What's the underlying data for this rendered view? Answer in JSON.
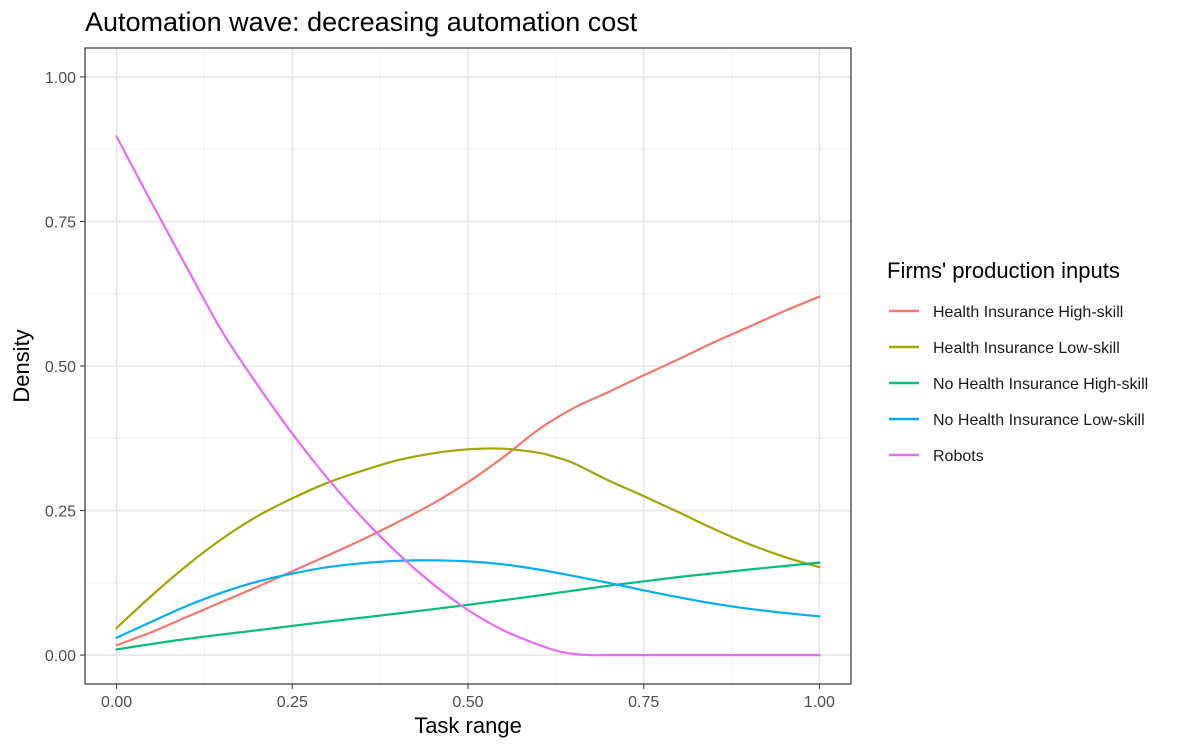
{
  "chart_data": {
    "type": "line",
    "title": "Automation wave: decreasing automation cost",
    "xlabel": "Task range",
    "ylabel": "Density",
    "xlim": [
      -0.045,
      1.045
    ],
    "ylim": [
      -0.05,
      1.05
    ],
    "x_ticks": [
      0,
      0.25,
      0.5,
      0.75,
      1
    ],
    "x_tick_labels": [
      "0.00",
      "0.25",
      "0.50",
      "0.75",
      "1.00"
    ],
    "y_ticks": [
      0,
      0.25,
      0.5,
      0.75,
      1
    ],
    "y_tick_labels": [
      "0.00",
      "0.25",
      "0.50",
      "0.75",
      "1.00"
    ],
    "grid": true,
    "legend": {
      "title": "Firms' production inputs",
      "placement": "right"
    },
    "series": [
      {
        "name": "Health Insurance High-skill",
        "color": "#F8766D",
        "points": [
          [
            0,
            0.017
          ],
          [
            0.05,
            0.04
          ],
          [
            0.1,
            0.066
          ],
          [
            0.15,
            0.092
          ],
          [
            0.2,
            0.118
          ],
          [
            0.25,
            0.145
          ],
          [
            0.3,
            0.172
          ],
          [
            0.35,
            0.2
          ],
          [
            0.4,
            0.23
          ],
          [
            0.45,
            0.262
          ],
          [
            0.5,
            0.299
          ],
          [
            0.55,
            0.342
          ],
          [
            0.6,
            0.39
          ],
          [
            0.65,
            0.427
          ],
          [
            0.7,
            0.455
          ],
          [
            0.75,
            0.484
          ],
          [
            0.8,
            0.512
          ],
          [
            0.85,
            0.541
          ],
          [
            0.9,
            0.568
          ],
          [
            0.95,
            0.595
          ],
          [
            1,
            0.62
          ]
        ]
      },
      {
        "name": "Health Insurance Low-skill",
        "color": "#A3A500",
        "points": [
          [
            0,
            0.047
          ],
          [
            0.05,
            0.103
          ],
          [
            0.1,
            0.155
          ],
          [
            0.15,
            0.201
          ],
          [
            0.2,
            0.24
          ],
          [
            0.25,
            0.271
          ],
          [
            0.3,
            0.298
          ],
          [
            0.35,
            0.319
          ],
          [
            0.4,
            0.337
          ],
          [
            0.45,
            0.349
          ],
          [
            0.5,
            0.356
          ],
          [
            0.55,
            0.357
          ],
          [
            0.6,
            0.35
          ],
          [
            0.62,
            0.344
          ],
          [
            0.65,
            0.332
          ],
          [
            0.7,
            0.302
          ],
          [
            0.75,
            0.275
          ],
          [
            0.8,
            0.247
          ],
          [
            0.85,
            0.218
          ],
          [
            0.9,
            0.192
          ],
          [
            0.95,
            0.17
          ],
          [
            1,
            0.152
          ]
        ]
      },
      {
        "name": "No Health Insurance High-skill",
        "color": "#00BF7D",
        "points": [
          [
            0,
            0.01
          ],
          [
            0.1,
            0.028
          ],
          [
            0.2,
            0.043
          ],
          [
            0.3,
            0.058
          ],
          [
            0.4,
            0.072
          ],
          [
            0.5,
            0.087
          ],
          [
            0.6,
            0.103
          ],
          [
            0.7,
            0.12
          ],
          [
            0.8,
            0.135
          ],
          [
            0.9,
            0.148
          ],
          [
            1,
            0.16
          ]
        ]
      },
      {
        "name": "No Health Insurance Low-skill",
        "color": "#00B0F6",
        "points": [
          [
            0,
            0.03
          ],
          [
            0.05,
            0.058
          ],
          [
            0.1,
            0.085
          ],
          [
            0.15,
            0.108
          ],
          [
            0.2,
            0.127
          ],
          [
            0.25,
            0.141
          ],
          [
            0.3,
            0.152
          ],
          [
            0.35,
            0.159
          ],
          [
            0.4,
            0.163
          ],
          [
            0.45,
            0.164
          ],
          [
            0.5,
            0.162
          ],
          [
            0.55,
            0.157
          ],
          [
            0.6,
            0.148
          ],
          [
            0.65,
            0.137
          ],
          [
            0.7,
            0.125
          ],
          [
            0.75,
            0.112
          ],
          [
            0.8,
            0.1
          ],
          [
            0.85,
            0.089
          ],
          [
            0.9,
            0.08
          ],
          [
            0.95,
            0.073
          ],
          [
            1,
            0.067
          ]
        ]
      },
      {
        "name": "Robots",
        "color": "#E76BF3",
        "points": [
          [
            0,
            0.897
          ],
          [
            0.05,
            0.782
          ],
          [
            0.1,
            0.67
          ],
          [
            0.15,
            0.56
          ],
          [
            0.2,
            0.468
          ],
          [
            0.25,
            0.383
          ],
          [
            0.3,
            0.306
          ],
          [
            0.35,
            0.237
          ],
          [
            0.4,
            0.176
          ],
          [
            0.45,
            0.123
          ],
          [
            0.5,
            0.078
          ],
          [
            0.55,
            0.043
          ],
          [
            0.6,
            0.018
          ],
          [
            0.625,
            0.008
          ],
          [
            0.65,
            0.002
          ],
          [
            0.675,
            0
          ],
          [
            0.7,
            0
          ],
          [
            0.8,
            0
          ],
          [
            0.9,
            0
          ],
          [
            1,
            0
          ]
        ]
      }
    ]
  }
}
